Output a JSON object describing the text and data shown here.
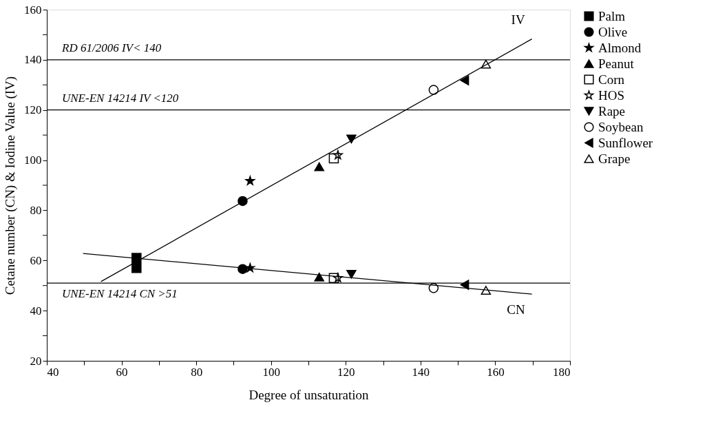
{
  "chart_data": {
    "type": "scatter",
    "xlabel": "Degree of unsaturation",
    "ylabel": "Cetane number (CN) & Iodine Value (IV)",
    "xlim": [
      40,
      180
    ],
    "ylim": [
      20,
      160
    ],
    "xticks": [
      40,
      {
        "value": 50,
        "label": null
      },
      60,
      {
        "value": 70,
        "label": null
      },
      80,
      {
        "value": 90,
        "label": null
      },
      100,
      {
        "value": 110,
        "label": null
      },
      120,
      {
        "value": 130,
        "label": null
      },
      140,
      {
        "value": 150,
        "label": null
      },
      160,
      {
        "value": 170,
        "label": null
      },
      180
    ],
    "yticks": [
      20,
      {
        "value": 30,
        "label": null
      },
      40,
      {
        "value": 50,
        "label": null
      },
      60,
      {
        "value": 70,
        "label": null
      },
      80,
      {
        "value": 90,
        "label": null
      },
      100,
      {
        "value": 110,
        "label": null
      },
      120,
      {
        "value": 130,
        "label": null
      },
      140,
      {
        "value": 150,
        "label": null
      },
      160
    ],
    "grid": false,
    "legend": "right",
    "series": [
      {
        "name": "Palm",
        "color": "#000000",
        "marker": "square",
        "x": [
          64,
          64
        ],
        "values": [
          57,
          61
        ]
      },
      {
        "name": "Olive",
        "color": "#000000",
        "marker": "circle",
        "x": [
          92.4,
          92.4
        ],
        "values": [
          83.7,
          56.6
        ]
      },
      {
        "name": "Almond",
        "color": "#000000",
        "marker": "star",
        "x": [
          94.4,
          94.4
        ],
        "values": [
          91.7,
          57
        ]
      },
      {
        "name": "Peanut",
        "color": "#000000",
        "marker": "triangle",
        "x": [
          112.9,
          112.9
        ],
        "values": [
          97.4,
          53.4
        ]
      },
      {
        "name": "Corn",
        "color": "#000000",
        "marker": "square-open",
        "x": [
          116.8,
          116.8
        ],
        "values": [
          100.7,
          53
        ]
      },
      {
        "name": "HOS",
        "color": "#000000",
        "marker": "star-open",
        "x": [
          117.9,
          117.9
        ],
        "values": [
          102,
          53
        ]
      },
      {
        "name": "Rape",
        "color": "#000000",
        "marker": "triangle-down",
        "x": [
          121.5,
          121.5
        ],
        "values": [
          108.4,
          54.5
        ]
      },
      {
        "name": "Soybean",
        "color": "#000000",
        "marker": "circle-open",
        "x": [
          143.5,
          143.5
        ],
        "values": [
          128,
          49
        ]
      },
      {
        "name": "Sunflower",
        "color": "#000000",
        "marker": "triangle-left",
        "x": [
          151.8,
          151.8
        ],
        "values": [
          131.8,
          50.3
        ]
      },
      {
        "name": "Grape",
        "color": "#000000",
        "marker": "triangle-open",
        "x": [
          157.5,
          157.5
        ],
        "values": [
          138.3,
          48.1
        ]
      },
      {
        "type": "line",
        "color": "#000000",
        "line_style": "solid",
        "x": [
          54.5,
          169.8
        ],
        "values": [
          51.6,
          148.3
        ]
      },
      {
        "type": "line",
        "color": "#000000",
        "line_style": "solid",
        "x": [
          49.7,
          169.8
        ],
        "values": [
          62.8,
          46.6
        ]
      }
    ],
    "ref_lines": [
      {
        "axis": "y",
        "value": 140,
        "label": "RD 61/2006 IV< 140",
        "color": "#000000"
      },
      {
        "axis": "y",
        "value": 120,
        "label": "UNE-EN 14214 IV <120",
        "color": "#000000"
      },
      {
        "axis": "y",
        "value": 51,
        "label": "UNE-EN 14214 CN >51",
        "color": "#000000"
      }
    ],
    "annotations": [
      "IV",
      "CN"
    ]
  }
}
